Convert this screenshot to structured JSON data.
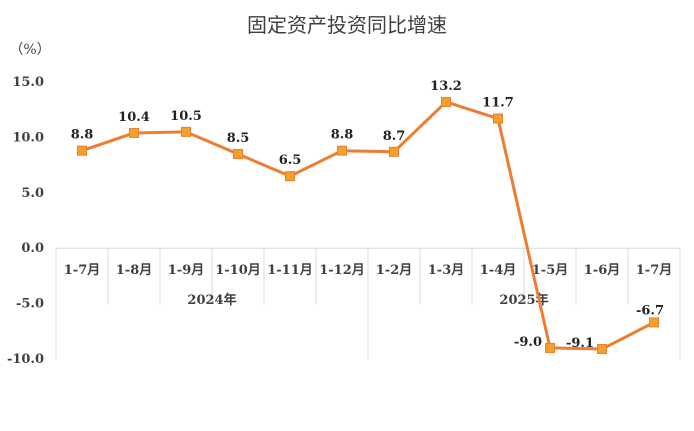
{
  "chart_data": {
    "type": "line",
    "title": "固定资产投资同比增速",
    "unit_label": "（%）",
    "categories": [
      "1-7月",
      "1-8月",
      "1-9月",
      "1-10月",
      "1-11月",
      "1-12月",
      "1-2月",
      "1-3月",
      "1-4月",
      "1-5月",
      "1-6月",
      "1-7月"
    ],
    "groups": [
      {
        "label": "2024年",
        "start": 0,
        "end": 5
      },
      {
        "label": "2025年",
        "start": 6,
        "end": 11
      }
    ],
    "series": [
      {
        "values": [
          8.8,
          10.4,
          10.5,
          8.5,
          6.5,
          8.8,
          8.7,
          13.2,
          11.7,
          -9.0,
          -9.1,
          -6.7
        ],
        "labels": [
          "8.8",
          "10.4",
          "10.5",
          "8.5",
          "6.5",
          "8.8",
          "8.7",
          "13.2",
          "11.7",
          "-9.0",
          "-9.1",
          "-6.7"
        ],
        "color": "#ED7D31",
        "marker_color": "#F5A02A"
      }
    ],
    "yticks": [
      "15.0",
      "10.0",
      "5.0",
      "0.0",
      "-5.0",
      "-10.0"
    ],
    "ylim": [
      -10,
      15
    ],
    "grid": false
  }
}
